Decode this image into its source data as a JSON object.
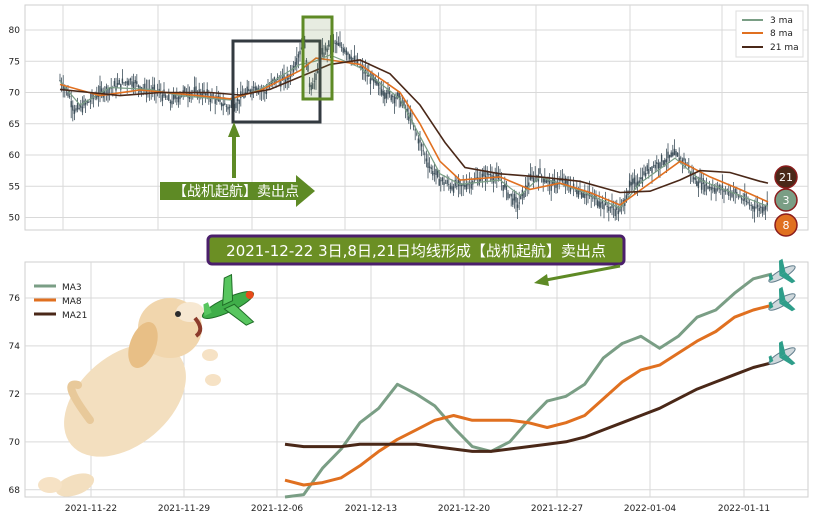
{
  "colors": {
    "ma3": "#7a9e85",
    "ma8": "#e07020",
    "ma21": "#4a2818",
    "candle": "#3d4f5a",
    "signal_green": "#5e8a25",
    "banner_border": "#4b1f6b",
    "grid": "#d9d9d9"
  },
  "annotations": {
    "signal_label": "【战机起航】卖出点",
    "banner_text": "2021-12-22 3日,8日,21日均线形成【战机起航】卖出点",
    "badge_21": "21",
    "badge_3": "3",
    "badge_8": "8"
  },
  "icons": [
    "puppy-illustration",
    "toy-plane-icon",
    "airplane-icon"
  ],
  "chart_data": [
    {
      "type": "line",
      "subtype": "candlestick-with-moving-averages",
      "title": "",
      "xlabel": "",
      "ylabel": "",
      "ylim": [
        48,
        84
      ],
      "yticks": [
        50,
        55,
        60,
        65,
        70,
        75,
        80
      ],
      "grid": true,
      "legend_position": "top-right",
      "legend": [
        "3 ma",
        "8 ma",
        "21 ma"
      ],
      "price_keypoints": [
        [
          0,
          72
        ],
        [
          8,
          70
        ],
        [
          15,
          67
        ],
        [
          25,
          68
        ],
        [
          40,
          70
        ],
        [
          55,
          71
        ],
        [
          70,
          72
        ],
        [
          85,
          70.5
        ],
        [
          100,
          70
        ],
        [
          110,
          68.5
        ],
        [
          125,
          70
        ],
        [
          140,
          70
        ],
        [
          155,
          69
        ],
        [
          170,
          67.5
        ],
        [
          180,
          69
        ],
        [
          195,
          71
        ],
        [
          205,
          70
        ],
        [
          215,
          72
        ],
        [
          228,
          72
        ],
        [
          238,
          76
        ],
        [
          244,
          78
        ],
        [
          250,
          71
        ],
        [
          256,
          72
        ],
        [
          262,
          76
        ],
        [
          272,
          78
        ],
        [
          285,
          77
        ],
        [
          300,
          74
        ],
        [
          312,
          72
        ],
        [
          325,
          70
        ],
        [
          340,
          69
        ],
        [
          350,
          66
        ],
        [
          360,
          62
        ],
        [
          370,
          58
        ],
        [
          380,
          56
        ],
        [
          392,
          55
        ],
        [
          402,
          55
        ],
        [
          415,
          56
        ],
        [
          430,
          57
        ],
        [
          440,
          56
        ],
        [
          448,
          54
        ],
        [
          458,
          52
        ],
        [
          470,
          56
        ],
        [
          480,
          57
        ],
        [
          492,
          55
        ],
        [
          500,
          56
        ],
        [
          510,
          55
        ],
        [
          522,
          54
        ],
        [
          535,
          53
        ],
        [
          545,
          52
        ],
        [
          552,
          51.5
        ],
        [
          560,
          51
        ],
        [
          570,
          55
        ],
        [
          580,
          56
        ],
        [
          590,
          58
        ],
        [
          602,
          59
        ],
        [
          615,
          60
        ],
        [
          625,
          59
        ],
        [
          635,
          56
        ],
        [
          648,
          55
        ],
        [
          660,
          54.5
        ],
        [
          675,
          54
        ],
        [
          690,
          52
        ],
        [
          700,
          51.5
        ],
        [
          708,
          52
        ]
      ],
      "series": [
        {
          "name": "3 ma",
          "points": [
            [
              0,
              71.8
            ],
            [
              20,
              68
            ],
            [
              50,
              70.8
            ],
            [
              90,
              70.5
            ],
            [
              120,
              69.5
            ],
            [
              170,
              68.8
            ],
            [
              200,
              70.5
            ],
            [
              240,
              74.5
            ],
            [
              255,
              75
            ],
            [
              270,
              76
            ],
            [
              300,
              74
            ],
            [
              340,
              69
            ],
            [
              360,
              63
            ],
            [
              380,
              57
            ],
            [
              400,
              55.3
            ],
            [
              440,
              56
            ],
            [
              460,
              53.5
            ],
            [
              480,
              56.5
            ],
            [
              520,
              54.3
            ],
            [
              560,
              51.5
            ],
            [
              580,
              55.5
            ],
            [
              615,
              59.5
            ],
            [
              640,
              56
            ],
            [
              680,
              53.5
            ],
            [
              708,
              51.8
            ]
          ]
        },
        {
          "name": "8 ma",
          "points": [
            [
              0,
              71.3
            ],
            [
              40,
              69.5
            ],
            [
              80,
              70.4
            ],
            [
              120,
              69.8
            ],
            [
              170,
              69
            ],
            [
              200,
              70.3
            ],
            [
              240,
              73.5
            ],
            [
              256,
              75.5
            ],
            [
              270,
              75.2
            ],
            [
              300,
              74.5
            ],
            [
              340,
              70
            ],
            [
              360,
              65
            ],
            [
              380,
              59
            ],
            [
              400,
              56
            ],
            [
              440,
              56.5
            ],
            [
              470,
              54.5
            ],
            [
              500,
              55.5
            ],
            [
              530,
              54
            ],
            [
              560,
              52
            ],
            [
              590,
              55.5
            ],
            [
              620,
              59
            ],
            [
              650,
              56.5
            ],
            [
              680,
              54.5
            ],
            [
              708,
              52.5
            ]
          ]
        },
        {
          "name": "21 ma",
          "points": [
            [
              0,
              70.5
            ],
            [
              30,
              70
            ],
            [
              60,
              69.5
            ],
            [
              100,
              70
            ],
            [
              150,
              70
            ],
            [
              180,
              69.6
            ],
            [
              210,
              70.5
            ],
            [
              240,
              72.5
            ],
            [
              270,
              74.5
            ],
            [
              300,
              75.2
            ],
            [
              330,
              73
            ],
            [
              360,
              68
            ],
            [
              385,
              62
            ],
            [
              405,
              58
            ],
            [
              440,
              57
            ],
            [
              480,
              56.5
            ],
            [
              520,
              55.8
            ],
            [
              560,
              54
            ],
            [
              590,
              54.2
            ],
            [
              620,
              56
            ],
            [
              640,
              57.5
            ],
            [
              670,
              57.2
            ],
            [
              700,
              55.8
            ],
            [
              708,
              55.5
            ]
          ]
        }
      ]
    },
    {
      "type": "line",
      "title": "",
      "xlabel": "",
      "ylabel": "",
      "ylim": [
        67.7,
        77.5
      ],
      "yticks": [
        68,
        70,
        72,
        74,
        76
      ],
      "grid": true,
      "legend_position": "top-left",
      "x_labels": [
        "2021-11-22",
        "2021-11-29",
        "2021-12-06",
        "2021-12-13",
        "2021-12-20",
        "2021-12-27",
        "2022-01-04",
        "2022-01-11"
      ],
      "series": [
        {
          "name": "MA3",
          "points": [
            [
              0,
              67.7
            ],
            [
              1,
              67.8
            ],
            [
              2,
              68.9
            ],
            [
              3,
              69.7
            ],
            [
              4,
              70.8
            ],
            [
              5,
              71.4
            ],
            [
              6,
              72.4
            ],
            [
              7,
              72
            ],
            [
              8,
              71.5
            ],
            [
              9,
              70.6
            ],
            [
              10,
              69.8
            ],
            [
              11,
              69.6
            ],
            [
              12,
              70
            ],
            [
              13,
              70.9
            ],
            [
              14,
              71.7
            ],
            [
              15,
              71.9
            ],
            [
              16,
              72.4
            ],
            [
              17,
              73.5
            ],
            [
              18,
              74.1
            ],
            [
              19,
              74.4
            ],
            [
              20,
              73.9
            ],
            [
              21,
              74.4
            ],
            [
              22,
              75.2
            ],
            [
              23,
              75.5
            ],
            [
              24,
              76.2
            ],
            [
              25,
              76.8
            ],
            [
              26,
              77
            ]
          ]
        },
        {
          "name": "MA8",
          "points": [
            [
              0,
              68.4
            ],
            [
              1,
              68.2
            ],
            [
              2,
              68.3
            ],
            [
              3,
              68.5
            ],
            [
              4,
              69
            ],
            [
              5,
              69.6
            ],
            [
              6,
              70.1
            ],
            [
              7,
              70.5
            ],
            [
              8,
              70.9
            ],
            [
              9,
              71.1
            ],
            [
              10,
              70.9
            ],
            [
              11,
              70.9
            ],
            [
              12,
              70.9
            ],
            [
              13,
              70.8
            ],
            [
              14,
              70.6
            ],
            [
              15,
              70.8
            ],
            [
              16,
              71.1
            ],
            [
              17,
              71.8
            ],
            [
              18,
              72.5
            ],
            [
              19,
              73
            ],
            [
              20,
              73.2
            ],
            [
              21,
              73.7
            ],
            [
              22,
              74.2
            ],
            [
              23,
              74.6
            ],
            [
              24,
              75.2
            ],
            [
              25,
              75.5
            ],
            [
              26,
              75.7
            ]
          ]
        },
        {
          "name": "MA21",
          "points": [
            [
              0,
              69.9
            ],
            [
              1,
              69.8
            ],
            [
              2,
              69.8
            ],
            [
              3,
              69.8
            ],
            [
              4,
              69.9
            ],
            [
              5,
              69.9
            ],
            [
              6,
              69.9
            ],
            [
              7,
              69.9
            ],
            [
              8,
              69.8
            ],
            [
              9,
              69.7
            ],
            [
              10,
              69.6
            ],
            [
              11,
              69.6
            ],
            [
              12,
              69.7
            ],
            [
              13,
              69.8
            ],
            [
              14,
              69.9
            ],
            [
              15,
              70
            ],
            [
              16,
              70.2
            ],
            [
              17,
              70.5
            ],
            [
              18,
              70.8
            ],
            [
              19,
              71.1
            ],
            [
              20,
              71.4
            ],
            [
              21,
              71.8
            ],
            [
              22,
              72.2
            ],
            [
              23,
              72.5
            ],
            [
              24,
              72.8
            ],
            [
              25,
              73.1
            ],
            [
              26,
              73.3
            ]
          ]
        }
      ]
    }
  ]
}
